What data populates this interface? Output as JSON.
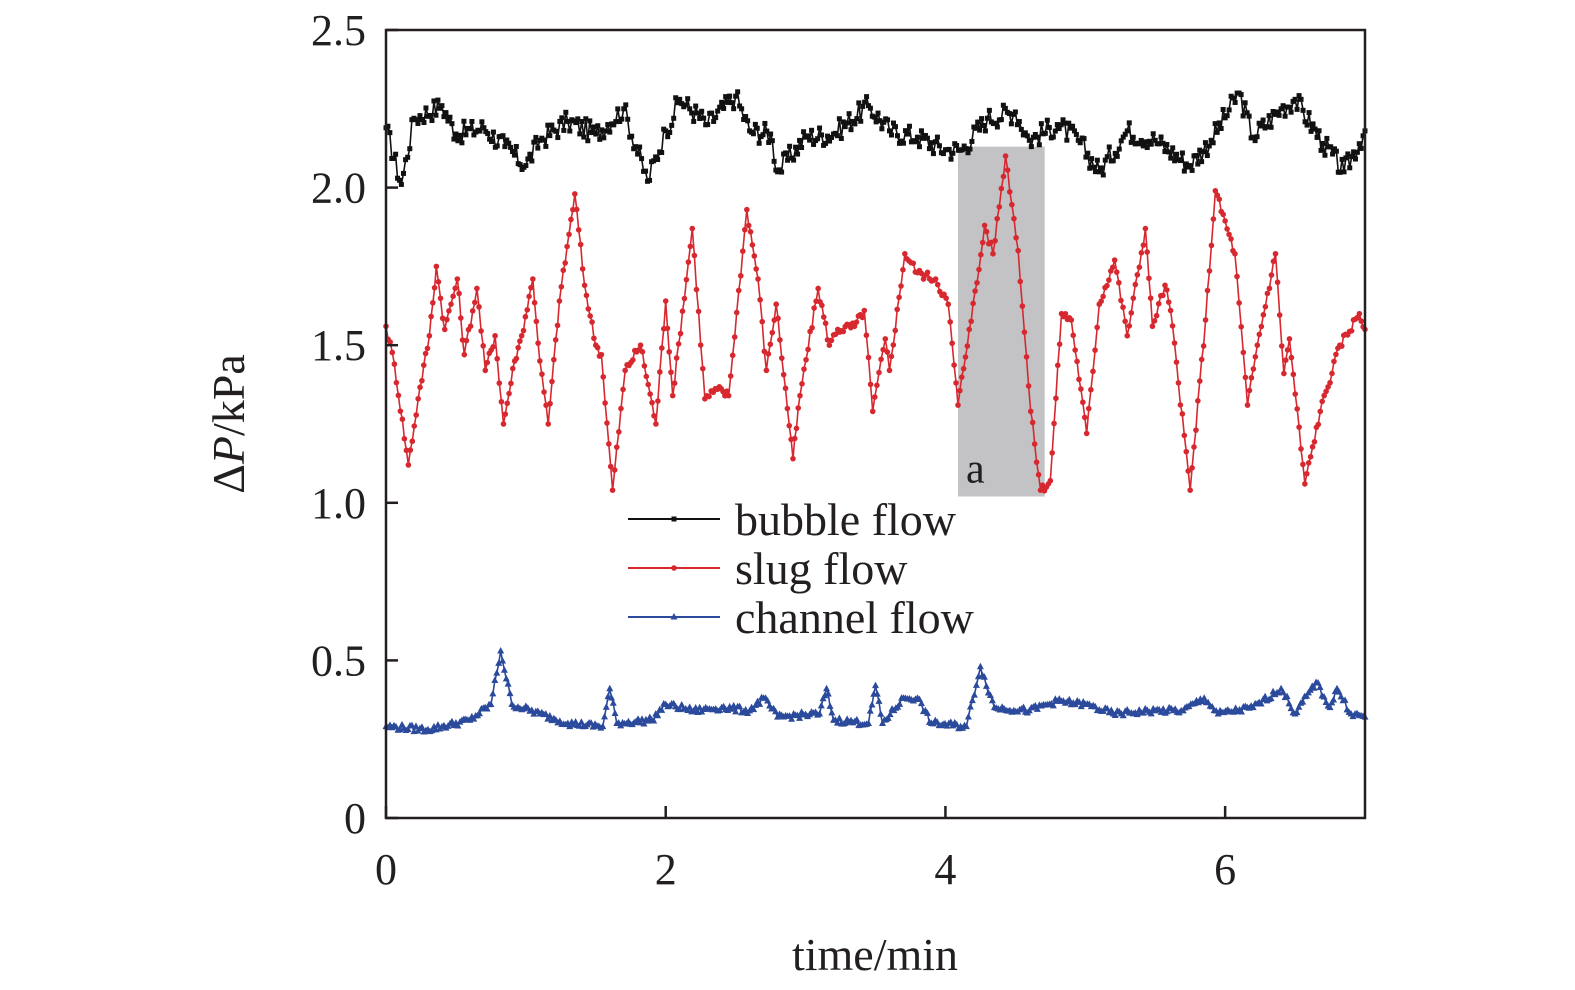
{
  "chart_data": {
    "type": "line",
    "xlabel": "time/min",
    "ylabel_prefix": "Δ",
    "ylabel_var": "P",
    "ylabel_unit": "/kPa",
    "xlim": [
      0,
      7
    ],
    "ylim": [
      0,
      2.5
    ],
    "xticks": [
      0,
      2,
      4,
      6
    ],
    "xtick_labels": [
      "0",
      "2",
      "4",
      "6"
    ],
    "yticks": [
      0,
      0.5,
      1.0,
      1.5,
      2.0,
      2.5
    ],
    "ytick_labels": [
      "0",
      "0.5",
      "1.0",
      "1.5",
      "2.0",
      "2.5"
    ],
    "grid": false,
    "legend_position": "center",
    "annotation": {
      "label": "a",
      "x_range": [
        4.09,
        4.71
      ],
      "y_range": [
        1.02,
        2.13
      ],
      "color": "#c3c3c5"
    },
    "series": [
      {
        "name": "bubble flow",
        "color": "#111111",
        "marker": "square",
        "x": [
          0,
          0.11,
          0.2,
          0.4,
          0.5,
          0.7,
          0.85,
          1.0,
          1.1,
          1.3,
          1.5,
          1.7,
          1.87,
          2.0,
          2.1,
          2.3,
          2.5,
          2.6,
          2.75,
          2.8,
          3.0,
          3.2,
          3.45,
          3.6,
          3.8,
          4.0,
          4.12,
          4.3,
          4.5,
          4.6,
          4.8,
          4.95,
          5.1,
          5.3,
          5.5,
          5.75,
          5.9,
          6.1,
          6.2,
          6.4,
          6.5,
          6.7,
          6.85,
          7.0
        ],
        "y": [
          2.19,
          2.01,
          2.22,
          2.26,
          2.17,
          2.19,
          2.13,
          2.07,
          2.15,
          2.21,
          2.17,
          2.25,
          2.02,
          2.18,
          2.28,
          2.2,
          2.29,
          2.18,
          2.17,
          2.05,
          2.16,
          2.17,
          2.26,
          2.18,
          2.16,
          2.12,
          2.12,
          2.22,
          2.24,
          2.15,
          2.2,
          2.15,
          2.05,
          2.18,
          2.15,
          2.07,
          2.15,
          2.3,
          2.16,
          2.25,
          2.28,
          2.14,
          2.05,
          2.18
        ]
      },
      {
        "name": "slug flow",
        "color": "#d7282f",
        "marker": "circle",
        "x": [
          0,
          0.06,
          0.16,
          0.23,
          0.31,
          0.36,
          0.42,
          0.51,
          0.56,
          0.65,
          0.71,
          0.78,
          0.84,
          0.92,
          0.97,
          1.05,
          1.1,
          1.16,
          1.24,
          1.35,
          1.42,
          1.5,
          1.54,
          1.62,
          1.71,
          1.82,
          1.93,
          2.0,
          2.05,
          2.19,
          2.28,
          2.37,
          2.45,
          2.58,
          2.66,
          2.72,
          2.79,
          2.91,
          2.96,
          3.09,
          3.17,
          3.23,
          3.35,
          3.42,
          3.48,
          3.57,
          3.6,
          3.71,
          3.8,
          3.93,
          4.02,
          4.09,
          4.17,
          4.24,
          4.28,
          4.34,
          4.43,
          4.52,
          4.61,
          4.68,
          4.75,
          4.83,
          4.9,
          5.01,
          5.1,
          5.21,
          5.3,
          5.43,
          5.48,
          5.57,
          5.61,
          5.75,
          5.86,
          5.93,
          6.07,
          6.16,
          6.23,
          6.36,
          6.42,
          6.46,
          6.57,
          6.68,
          6.82,
          6.96,
          7.0
        ],
        "y": [
          1.56,
          1.44,
          1.12,
          1.33,
          1.53,
          1.75,
          1.55,
          1.71,
          1.47,
          1.68,
          1.42,
          1.53,
          1.25,
          1.45,
          1.53,
          1.71,
          1.45,
          1.25,
          1.64,
          1.98,
          1.69,
          1.5,
          1.47,
          1.04,
          1.42,
          1.5,
          1.25,
          1.64,
          1.34,
          1.87,
          1.33,
          1.36,
          1.34,
          1.93,
          1.71,
          1.42,
          1.63,
          1.14,
          1.34,
          1.68,
          1.5,
          1.55,
          1.56,
          1.61,
          1.29,
          1.52,
          1.42,
          1.79,
          1.73,
          1.71,
          1.63,
          1.31,
          1.55,
          1.74,
          1.88,
          1.79,
          2.1,
          1.8,
          1.29,
          1.04,
          1.07,
          1.6,
          1.58,
          1.22,
          1.63,
          1.77,
          1.53,
          1.87,
          1.56,
          1.69,
          1.61,
          1.04,
          1.58,
          1.99,
          1.79,
          1.31,
          1.5,
          1.79,
          1.41,
          1.52,
          1.06,
          1.29,
          1.5,
          1.6,
          1.55
        ]
      },
      {
        "name": "channel flow",
        "color": "#2b4a9b",
        "marker": "triangle",
        "x": [
          0,
          0.3,
          0.6,
          0.75,
          0.82,
          0.9,
          1.1,
          1.3,
          1.55,
          1.6,
          1.65,
          1.9,
          2.0,
          2.2,
          2.4,
          2.6,
          2.7,
          2.8,
          3.1,
          3.15,
          3.2,
          3.45,
          3.5,
          3.55,
          3.7,
          3.8,
          3.9,
          4.15,
          4.25,
          4.35,
          4.6,
          4.8,
          5.0,
          5.2,
          5.5,
          5.7,
          5.85,
          5.95,
          6.2,
          6.4,
          6.5,
          6.65,
          6.75,
          6.8,
          6.9,
          7.0
        ],
        "y": [
          0.29,
          0.28,
          0.31,
          0.36,
          0.53,
          0.36,
          0.33,
          0.3,
          0.29,
          0.41,
          0.3,
          0.31,
          0.36,
          0.34,
          0.35,
          0.34,
          0.38,
          0.32,
          0.33,
          0.41,
          0.31,
          0.3,
          0.42,
          0.3,
          0.38,
          0.38,
          0.3,
          0.29,
          0.48,
          0.35,
          0.34,
          0.37,
          0.36,
          0.33,
          0.34,
          0.34,
          0.38,
          0.33,
          0.35,
          0.41,
          0.33,
          0.43,
          0.35,
          0.41,
          0.33,
          0.32
        ]
      }
    ]
  }
}
